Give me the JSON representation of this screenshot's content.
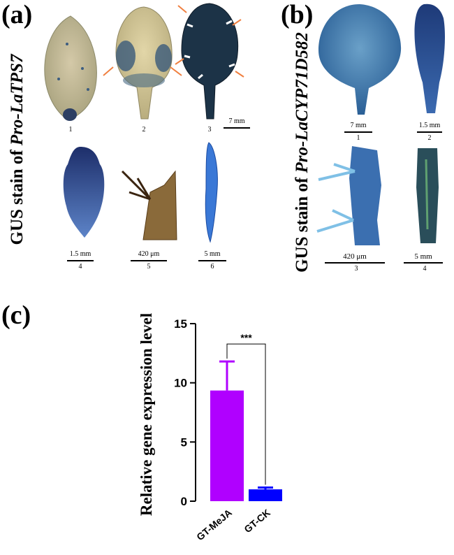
{
  "panel_a": {
    "label": "(a)",
    "side_label_prefix": "GUS stain of ",
    "side_label_italic": "Pro-LaTPS7",
    "images": [
      {
        "num": "1",
        "scale": ""
      },
      {
        "num": "2",
        "scale": ""
      },
      {
        "num": "3",
        "scale": "7 mm"
      },
      {
        "num": "4",
        "scale": "1.5 mm"
      },
      {
        "num": "5",
        "scale": "420 μm"
      },
      {
        "num": "6",
        "scale": "5 mm"
      }
    ]
  },
  "panel_b": {
    "label": "(b)",
    "side_label_prefix": "GUS stain of ",
    "side_label_italic": "Pro-LaCYP71D582",
    "images": [
      {
        "num": "1",
        "scale": "7 mm"
      },
      {
        "num": "2",
        "scale": "1.5 mm"
      },
      {
        "num": "3",
        "scale": "420 μm"
      },
      {
        "num": "4",
        "scale": "5 mm"
      }
    ]
  },
  "panel_c": {
    "label": "(c)"
  },
  "chart_data": {
    "type": "bar",
    "categories": [
      "GT-MeJA",
      "GT-CK"
    ],
    "values": [
      9.35,
      1.0
    ],
    "errors": [
      2.45,
      0.15
    ],
    "colors": [
      "#b000ff",
      "#0000ff"
    ],
    "ylabel": "Relative gene expression level",
    "ylim": [
      0,
      15
    ],
    "yticks": [
      0,
      5,
      10,
      15
    ],
    "significance": "***"
  }
}
